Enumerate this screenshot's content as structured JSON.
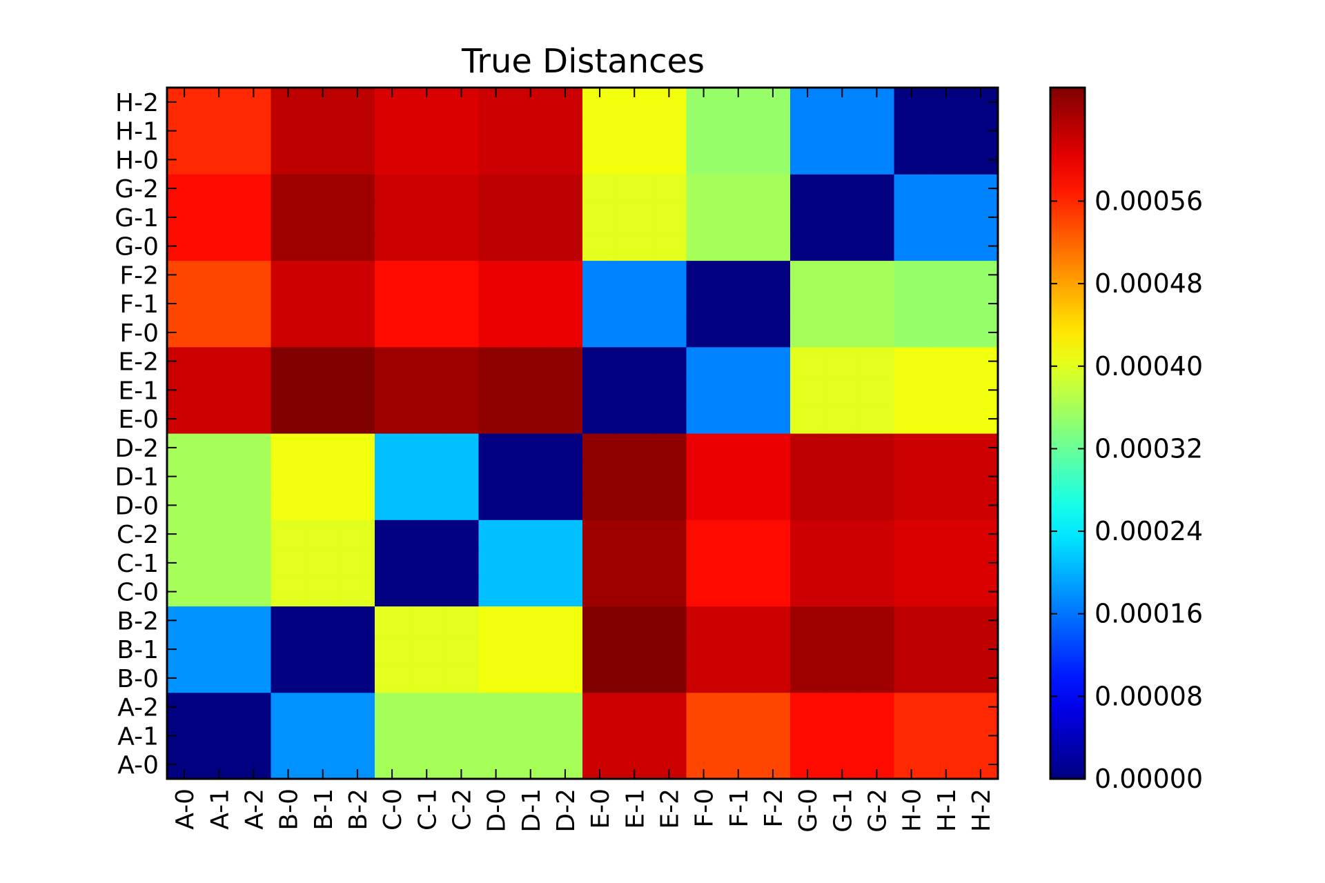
{
  "chart_data": {
    "type": "heatmap",
    "title": "True Distances",
    "xlabel": "",
    "ylabel": "",
    "grid": false,
    "colormap": "jet",
    "x_labels": [
      "A-0",
      "A-1",
      "A-2",
      "B-0",
      "B-1",
      "B-2",
      "C-0",
      "C-1",
      "C-2",
      "D-0",
      "D-1",
      "D-2",
      "E-0",
      "E-1",
      "E-2",
      "F-0",
      "F-1",
      "F-2",
      "G-0",
      "G-1",
      "G-2",
      "H-0",
      "H-1",
      "H-2"
    ],
    "y_labels": [
      "A-0",
      "A-1",
      "A-2",
      "B-0",
      "B-1",
      "B-2",
      "C-0",
      "C-1",
      "C-2",
      "D-0",
      "D-1",
      "D-2",
      "E-0",
      "E-1",
      "E-2",
      "F-0",
      "F-1",
      "F-2",
      "G-0",
      "G-1",
      "G-2",
      "H-0",
      "H-1",
      "H-2"
    ],
    "block_labels": [
      "A",
      "B",
      "C",
      "D",
      "E",
      "F",
      "G",
      "H"
    ],
    "block_size": 3,
    "block_values": [
      [
        0.0,
        0.00018,
        0.00036,
        0.00036,
        0.00062,
        0.00054,
        0.00058,
        0.00056
      ],
      [
        0.00018,
        0.0,
        0.0004,
        0.00041,
        0.00067,
        0.00062,
        0.00065,
        0.00063
      ],
      [
        0.00036,
        0.0004,
        0.0,
        0.00021,
        0.00065,
        0.00058,
        0.00062,
        0.00061
      ],
      [
        0.00036,
        0.00041,
        0.00021,
        0.0,
        0.00066,
        0.0006,
        0.00063,
        0.00062
      ],
      [
        0.00062,
        0.00067,
        0.00065,
        0.00066,
        0.0,
        0.00017,
        0.0004,
        0.00041
      ],
      [
        0.00054,
        0.00062,
        0.00058,
        0.0006,
        0.00017,
        0.0,
        0.00036,
        0.00035
      ],
      [
        0.00058,
        0.00065,
        0.00062,
        0.00063,
        0.0004,
        0.00036,
        0.0,
        0.00017
      ],
      [
        0.00056,
        0.00063,
        0.00061,
        0.00062,
        0.00041,
        0.00035,
        0.00017,
        0.0
      ]
    ],
    "colorbar": {
      "min": 0.0,
      "max": 0.00067,
      "ticks": [
        0.0,
        8e-05,
        0.00016,
        0.00024,
        0.00032,
        0.0004,
        0.00048,
        0.00056
      ],
      "tick_labels": [
        "0.00000",
        "0.00008",
        "0.00016",
        "0.00024",
        "0.00032",
        "0.00040",
        "0.00048",
        "0.00056"
      ]
    }
  }
}
